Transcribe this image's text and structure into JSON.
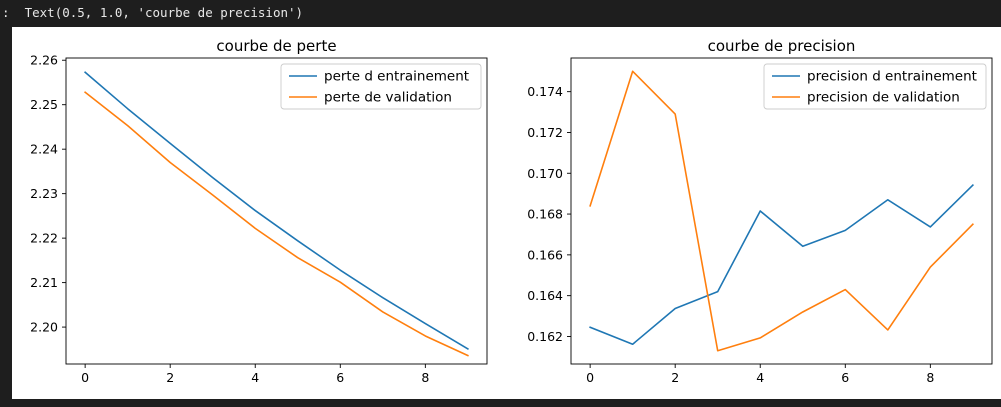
{
  "output": {
    "prefix": ":",
    "text": "Text(0.5, 1.0, 'courbe de precision')"
  },
  "colors": {
    "series_1": "#1f77b4",
    "series_2": "#ff7f0e",
    "axes": "#000000",
    "legend_border": "#cccccc",
    "background": "#ffffff"
  },
  "chart_data": [
    {
      "type": "line",
      "title": "courbe de perte",
      "xlabel": "",
      "ylabel": "",
      "x": [
        0,
        1,
        2,
        3,
        4,
        5,
        6,
        7,
        8,
        9
      ],
      "series": [
        {
          "name": "perte d entrainement",
          "values": [
            2.2573,
            2.2491,
            2.2413,
            2.2336,
            2.2262,
            2.2194,
            2.2128,
            2.2066,
            2.2008,
            2.1951
          ]
        },
        {
          "name": "perte de validation",
          "values": [
            2.2528,
            2.2453,
            2.237,
            2.2297,
            2.2222,
            2.2156,
            2.2101,
            2.2034,
            2.198,
            2.1936
          ]
        }
      ],
      "xlim": [
        -0.45,
        9.45
      ],
      "ylim": [
        2.1917,
        2.2605
      ],
      "xticks": [
        0,
        2,
        4,
        6,
        8
      ],
      "yticks": [
        2.2,
        2.21,
        2.22,
        2.23,
        2.24,
        2.25,
        2.26
      ],
      "ytick_decimals": 2,
      "grid": false,
      "legend": "top-right"
    },
    {
      "type": "line",
      "title": "courbe de precision",
      "xlabel": "",
      "ylabel": "",
      "x": [
        0,
        1,
        2,
        3,
        4,
        5,
        6,
        7,
        8,
        9
      ],
      "series": [
        {
          "name": "precision d entrainement",
          "values": [
            0.16245,
            0.16162,
            0.16337,
            0.1642,
            0.16815,
            0.16642,
            0.1672,
            0.1687,
            0.16737,
            0.16942
          ]
        },
        {
          "name": "precision de validation",
          "values": [
            0.1684,
            0.175,
            0.1729,
            0.1613,
            0.16193,
            0.1632,
            0.1643,
            0.16232,
            0.1654,
            0.1675
          ]
        }
      ],
      "xlim": [
        -0.45,
        9.45
      ],
      "ylim": [
        0.16065,
        0.17565
      ],
      "xticks": [
        0,
        2,
        4,
        6,
        8
      ],
      "yticks": [
        0.162,
        0.164,
        0.166,
        0.168,
        0.17,
        0.172,
        0.174
      ],
      "ytick_decimals": 3,
      "grid": false,
      "legend": "top-right"
    }
  ]
}
